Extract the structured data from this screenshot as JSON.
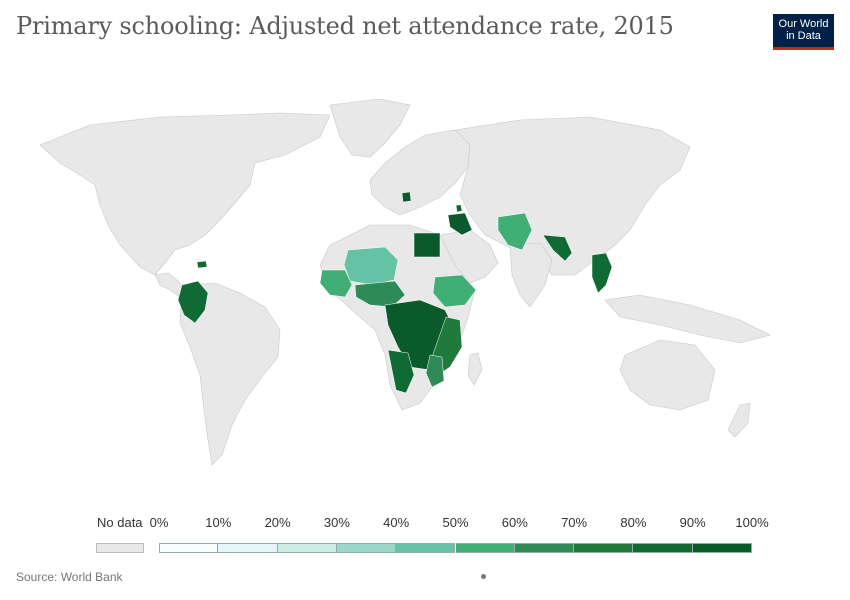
{
  "header": {
    "title": "Primary schooling: Adjusted net attendance rate, 2015",
    "logo_line1": "Our World",
    "logo_line2": "in Data"
  },
  "legend": {
    "no_data_label": "No data",
    "ticks": [
      "0%",
      "10%",
      "20%",
      "30%",
      "40%",
      "50%",
      "60%",
      "70%",
      "80%",
      "90%",
      "100%"
    ],
    "colors": [
      "#f7fcfd",
      "#e5f5f9",
      "#ccece6",
      "#99d8c9",
      "#66c2a4",
      "#41ae76",
      "#2e8b57",
      "#1f7a3c",
      "#0f6b33",
      "#0a5a2b"
    ],
    "no_data_color": "#e8e8e8"
  },
  "footer": {
    "source": "Source: World Bank"
  },
  "map": {
    "no_data_color": "#e8e8e8",
    "colored_regions": [
      {
        "id": "colombia",
        "bin": 8
      },
      {
        "id": "haiti",
        "bin": 8
      },
      {
        "id": "west-africa-sahel",
        "bin": 4
      },
      {
        "id": "west-africa-coast",
        "bin": 5
      },
      {
        "id": "central-africa",
        "bin": 8
      },
      {
        "id": "east-africa",
        "bin": 7
      },
      {
        "id": "ethiopia",
        "bin": 6
      },
      {
        "id": "angola-namibia",
        "bin": 8
      },
      {
        "id": "mozambique",
        "bin": 6
      },
      {
        "id": "egypt",
        "bin": 9
      },
      {
        "id": "iraq",
        "bin": 9
      },
      {
        "id": "lebanon",
        "bin": 8
      },
      {
        "id": "serbia",
        "bin": 9
      },
      {
        "id": "afghanistan-pakistan",
        "bin": 5
      },
      {
        "id": "nepal-bangladesh",
        "bin": 8
      },
      {
        "id": "vietnam-laos",
        "bin": 8
      }
    ]
  }
}
